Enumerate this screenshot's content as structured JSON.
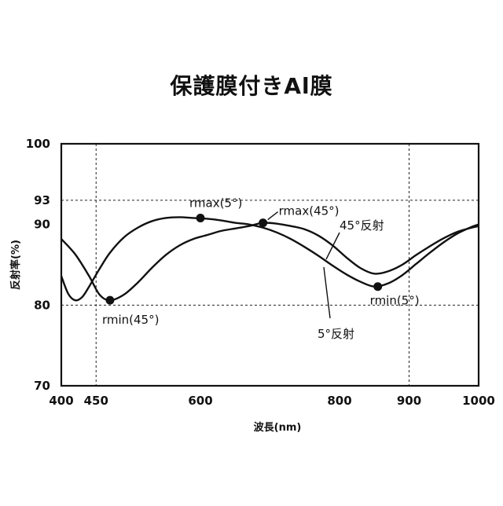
{
  "chart_data": {
    "type": "line",
    "title": "保護膜付きAl膜",
    "xlabel": "波長(nm)",
    "ylabel": "反射率(%)",
    "xlim": [
      400,
      1000
    ],
    "ylim": [
      70,
      100
    ],
    "xticks": [
      400,
      450,
      600,
      800,
      900,
      1000
    ],
    "yticks": [
      70,
      80,
      90,
      93,
      100
    ],
    "grid": {
      "dashed_x": [
        450,
        900
      ],
      "dashed_y": [
        93,
        80
      ]
    },
    "series": [
      {
        "name": "45°反射",
        "x": [
          400,
          420,
          440,
          455,
          470,
          490,
          510,
          530,
          550,
          570,
          590,
          610,
          630,
          650,
          670,
          690,
          710,
          730,
          750,
          770,
          790,
          810,
          830,
          850,
          870,
          890,
          910,
          930,
          950,
          970,
          990,
          1000
        ],
        "values": [
          88.2,
          86.3,
          83.6,
          81.3,
          80.6,
          81.3,
          82.8,
          84.6,
          86.2,
          87.4,
          88.2,
          88.7,
          89.2,
          89.5,
          89.8,
          90.2,
          90.1,
          89.8,
          89.4,
          88.6,
          87.4,
          85.9,
          84.6,
          83.9,
          84.2,
          85.0,
          86.2,
          87.3,
          88.3,
          89.1,
          89.6,
          89.8
        ]
      },
      {
        "name": "5°反射",
        "x": [
          400,
          410,
          420,
          430,
          440,
          455,
          470,
          490,
          510,
          530,
          550,
          570,
          590,
          610,
          630,
          650,
          670,
          690,
          710,
          730,
          750,
          770,
          790,
          810,
          830,
          850,
          870,
          890,
          910,
          930,
          950,
          970,
          990,
          1000
        ],
        "values": [
          83.6,
          81.4,
          80.6,
          81.0,
          82.3,
          84.5,
          86.5,
          88.4,
          89.6,
          90.4,
          90.8,
          90.9,
          90.8,
          90.7,
          90.5,
          90.2,
          90.0,
          89.6,
          89.0,
          88.2,
          87.2,
          86.1,
          84.9,
          83.8,
          82.9,
          82.3,
          82.7,
          83.7,
          85.1,
          86.5,
          87.8,
          88.9,
          89.7,
          90.0
        ]
      }
    ],
    "markers": [
      {
        "label": "rmax(5°)",
        "x": 600,
        "y": 90.8
      },
      {
        "label": "rmax(45°)",
        "x": 690,
        "y": 90.2
      },
      {
        "label": "rmin(45°)",
        "x": 470,
        "y": 80.6
      },
      {
        "label": "rmin(5°)",
        "x": 855,
        "y": 82.3
      }
    ]
  }
}
